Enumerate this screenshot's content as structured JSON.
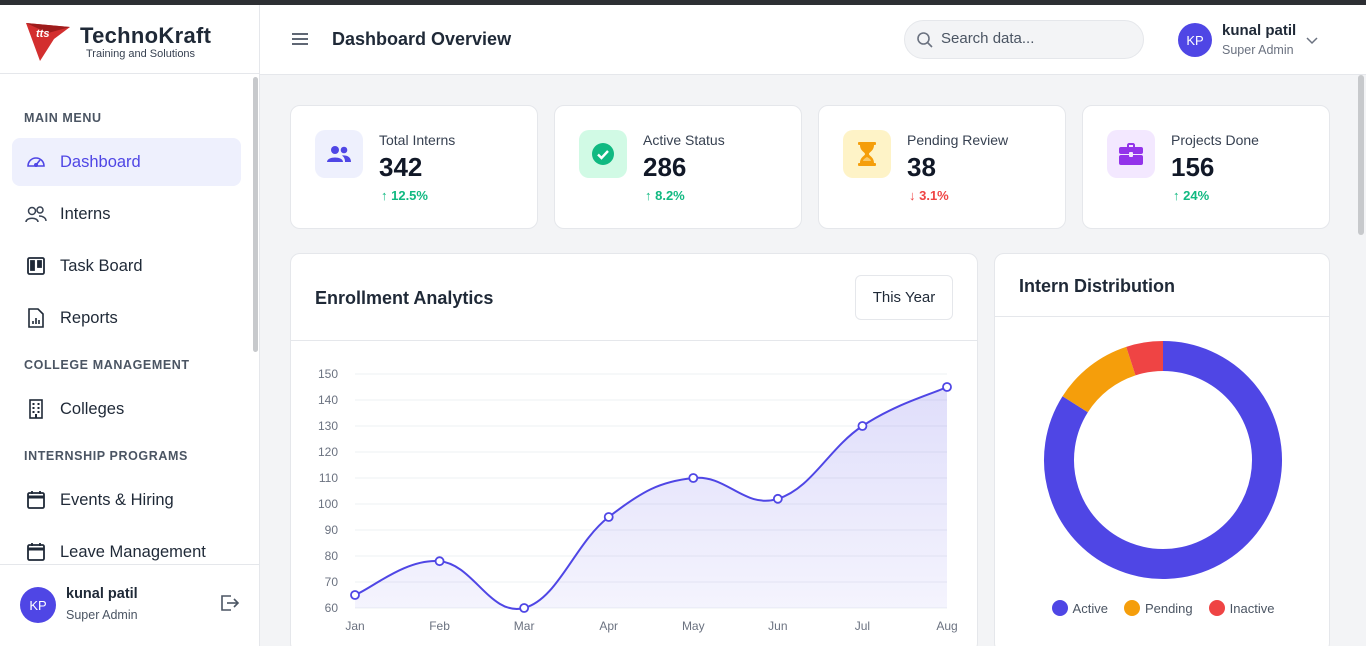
{
  "brand": {
    "name": "TechnoKraft",
    "tagline": "Training and Solutions",
    "logo_text": "tts"
  },
  "sidebar": {
    "sections": [
      {
        "label": "MAIN MENU"
      },
      {
        "label": "COLLEGE MANAGEMENT"
      },
      {
        "label": "INTERNSHIP PROGRAMS"
      }
    ],
    "items": [
      {
        "label": "Dashboard",
        "icon": "gauge-icon",
        "active": true
      },
      {
        "label": "Interns",
        "icon": "users-icon"
      },
      {
        "label": "Task Board",
        "icon": "kanban-icon"
      },
      {
        "label": "Reports",
        "icon": "report-icon"
      },
      {
        "label": "Colleges",
        "icon": "building-icon"
      },
      {
        "label": "Events & Hiring",
        "icon": "calendar-icon"
      },
      {
        "label": "Leave Management",
        "icon": "calendar-icon"
      }
    ],
    "footer": {
      "initials": "KP",
      "name": "kunal patil",
      "role": "Super Admin"
    }
  },
  "header": {
    "title": "Dashboard Overview",
    "search_placeholder": "Search data...",
    "user": {
      "initials": "KP",
      "name": "kunal patil",
      "role": "Super Admin"
    }
  },
  "stats": [
    {
      "label": "Total Interns",
      "value": "342",
      "delta": "↑ 12.5%",
      "trend": "up",
      "icon": "users-icon",
      "color": "#4f46e5",
      "bg": "#eef0fd"
    },
    {
      "label": "Active Status",
      "value": "286",
      "delta": "↑ 8.2%",
      "trend": "up",
      "icon": "check-circle-icon",
      "color": "#10b981",
      "bg": "#d1fae5"
    },
    {
      "label": "Pending Review",
      "value": "38",
      "delta": "↓ 3.1%",
      "trend": "down",
      "icon": "hourglass-icon",
      "color": "#f59e0b",
      "bg": "#fef3c7"
    },
    {
      "label": "Projects Done",
      "value": "156",
      "delta": "↑ 24%",
      "trend": "up",
      "icon": "briefcase-icon",
      "color": "#9333ea",
      "bg": "#f3e8ff"
    }
  ],
  "enrollment": {
    "title": "Enrollment Analytics",
    "period_button": "This Year"
  },
  "distribution": {
    "title": "Intern Distribution"
  },
  "chart_data": [
    {
      "type": "area",
      "categories": [
        "Jan",
        "Feb",
        "Mar",
        "Apr",
        "May",
        "Jun",
        "Jul",
        "Aug"
      ],
      "values": [
        65,
        78,
        60,
        95,
        110,
        102,
        130,
        145
      ],
      "ylim": [
        60,
        150
      ],
      "yticks": [
        60,
        70,
        80,
        90,
        100,
        110,
        120,
        130,
        140,
        150
      ],
      "color": "#4f46e5",
      "grid": true
    },
    {
      "type": "pie",
      "categories": [
        "Active",
        "Pending",
        "Inactive"
      ],
      "values": [
        84,
        11,
        5
      ],
      "colors": [
        "#4f46e5",
        "#f59e0b",
        "#ef4444"
      ],
      "legend": "bottom"
    }
  ]
}
